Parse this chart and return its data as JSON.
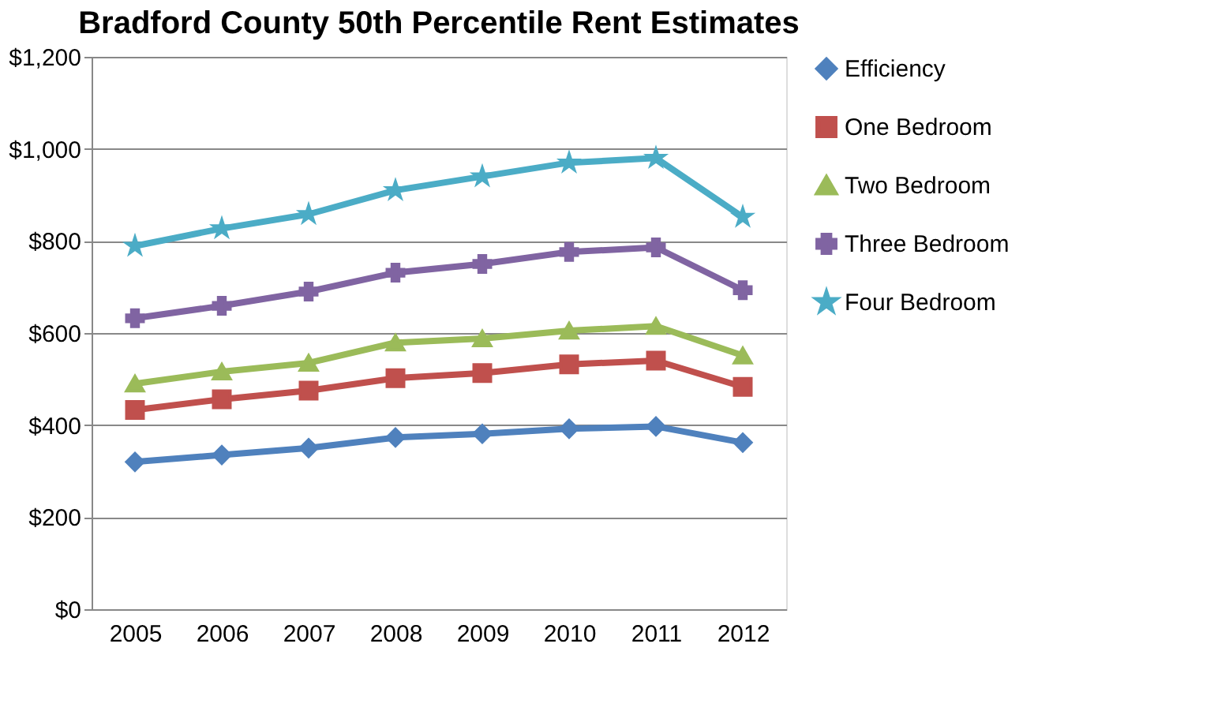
{
  "chart_data": {
    "type": "line",
    "title": "Bradford County 50th Percentile Rent Estimates",
    "categories": [
      "2005",
      "2006",
      "2007",
      "2008",
      "2009",
      "2010",
      "2011",
      "2012"
    ],
    "series": [
      {
        "name": "Efficiency",
        "color": "#4f81bd",
        "marker": "diamond",
        "values": [
          320,
          335,
          350,
          373,
          381,
          392,
          397,
          362
        ]
      },
      {
        "name": "One Bedroom",
        "color": "#c0504d",
        "marker": "square",
        "values": [
          433,
          456,
          475,
          502,
          513,
          532,
          540,
          483
        ]
      },
      {
        "name": "Two Bedroom",
        "color": "#9bbb59",
        "marker": "triangle",
        "values": [
          490,
          516,
          535,
          579,
          588,
          605,
          615,
          551
        ]
      },
      {
        "name": "Three Bedroom",
        "color": "#8064a2",
        "marker": "cross",
        "values": [
          632,
          659,
          690,
          731,
          750,
          776,
          786,
          693
        ]
      },
      {
        "name": "Four Bedroom",
        "color": "#4bacc6",
        "marker": "star",
        "values": [
          789,
          827,
          858,
          910,
          940,
          970,
          980,
          852
        ]
      }
    ],
    "ylim": [
      0,
      1200
    ],
    "yticks": [
      {
        "value": 0,
        "label": "$0"
      },
      {
        "value": 200,
        "label": "$200"
      },
      {
        "value": 400,
        "label": "$400"
      },
      {
        "value": 600,
        "label": "$600"
      },
      {
        "value": 800,
        "label": "$800"
      },
      {
        "value": 1000,
        "label": "$1,000"
      },
      {
        "value": 1200,
        "label": "$1,200"
      }
    ],
    "grid": "y",
    "legend": "right"
  }
}
